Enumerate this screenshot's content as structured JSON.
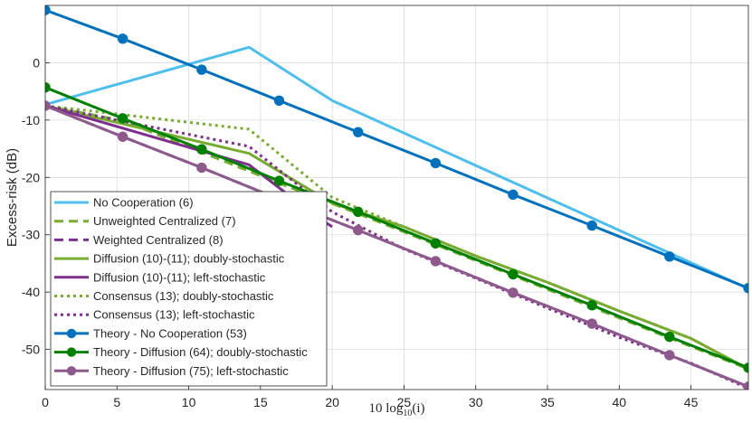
{
  "chart_data": {
    "type": "line",
    "title": "",
    "xlabel": "10 log10(i)",
    "xlabel_parts": {
      "prefix": "10 log",
      "sub": "10",
      "suffix": "(i)"
    },
    "ylabel": "Excess-risk (dB)",
    "xlim": [
      0,
      49
    ],
    "ylim": [
      -57,
      10
    ],
    "xticks": [
      0,
      5,
      10,
      15,
      20,
      25,
      30,
      35,
      40,
      45
    ],
    "yticks": [
      0,
      -10,
      -20,
      -30,
      -40,
      -50
    ],
    "grid": true,
    "legend_position": "bottom-left",
    "series": [
      {
        "name": "No Cooperation (6)",
        "color": "#4DBEEE",
        "dash": "solid",
        "marker": "none",
        "x": [
          0,
          14.2,
          20,
          49
        ],
        "y": [
          -7.3,
          2.7,
          -6.6,
          -39.4
        ]
      },
      {
        "name": "Unweighted Centralized (7)",
        "color": "#77AC30",
        "dash": "dashed",
        "marker": "none",
        "x": [
          0,
          5.4,
          10.9,
          16.3,
          21.8,
          27.2,
          32.6,
          38.1,
          43.5,
          49
        ],
        "y": [
          -7.5,
          -10.1,
          -15.6,
          -21.0,
          -26.3,
          -31.7,
          -37.1,
          -42.6,
          -48.0,
          -53.4
        ]
      },
      {
        "name": "Weighted Centralized (8)",
        "color": "#7E2F8E",
        "dash": "dashed",
        "marker": "none",
        "x": [
          0,
          5.4,
          10.9,
          16.3,
          21.8,
          27.2,
          32.6,
          38.1,
          43.5,
          49
        ],
        "y": [
          -7.5,
          -12.9,
          -18.3,
          -23.8,
          -29.2,
          -34.6,
          -40.1,
          -45.5,
          -51.0,
          -56.5
        ]
      },
      {
        "name": "Diffusion (10)-(11); doubly-stochastic",
        "color": "#77AC30",
        "dash": "solid",
        "marker": "none",
        "x": [
          0,
          14.2,
          20,
          25,
          30,
          35,
          40,
          45,
          49
        ],
        "y": [
          -7.5,
          -15.8,
          -24.5,
          -28.6,
          -33.7,
          -38.3,
          -43.3,
          -48.1,
          -53.4
        ]
      },
      {
        "name": "Diffusion (10)-(11); left-stochastic",
        "color": "#7E2F8E",
        "dash": "solid",
        "marker": "none",
        "x": [
          0,
          14.2,
          19,
          20
        ],
        "y": [
          -7.5,
          -17.8,
          -27.0,
          -28.6
        ]
      },
      {
        "name": "Consensus (13); doubly-stochastic",
        "color": "#77AC30",
        "dash": "dotted",
        "marker": "none",
        "x": [
          0,
          14.2,
          20,
          25,
          30,
          35,
          40,
          45,
          49
        ],
        "y": [
          -7.5,
          -11.6,
          -23.5,
          -28.6,
          -33.7,
          -38.3,
          -43.3,
          -48.1,
          -53.4
        ]
      },
      {
        "name": "Consensus (13); left-stochastic",
        "color": "#7E2F8E",
        "dash": "dotted",
        "marker": "none",
        "x": [
          0,
          14.2,
          20,
          25,
          30,
          35,
          40,
          45,
          49
        ],
        "y": [
          -7.5,
          -14.6,
          -26.0,
          -32.5,
          -37.6,
          -42.8,
          -47.9,
          -52.4,
          -56.8
        ]
      },
      {
        "name": "Theory - No Cooperation (53)",
        "color": "#0072BD",
        "dash": "solid",
        "marker": "circle",
        "x": [
          0,
          5.4,
          10.9,
          16.3,
          21.8,
          27.2,
          32.6,
          38.1,
          43.5,
          49
        ],
        "y": [
          9.2,
          4.2,
          -1.2,
          -6.6,
          -12.1,
          -17.5,
          -23.0,
          -28.4,
          -33.8,
          -39.3
        ]
      },
      {
        "name": "Theory - Diffusion (64); doubly-stochastic",
        "color": "#008000",
        "dash": "solid",
        "marker": "circle",
        "x": [
          0,
          5.4,
          10.9,
          16.3,
          21.8,
          27.2,
          32.6,
          38.1,
          43.5,
          49
        ],
        "y": [
          -4.3,
          -9.7,
          -15.1,
          -20.6,
          -26.0,
          -31.5,
          -36.9,
          -42.3,
          -47.8,
          -53.2
        ]
      },
      {
        "name": "Theory - Diffusion (75); left-stochastic",
        "color": "#8E5A8E",
        "dash": "solid",
        "marker": "circle",
        "x": [
          0,
          5.4,
          10.9,
          16.3,
          21.8,
          27.2,
          32.6,
          38.1,
          43.5,
          49
        ],
        "y": [
          -7.5,
          -12.9,
          -18.3,
          -23.8,
          -29.2,
          -34.6,
          -40.1,
          -45.5,
          -51.0,
          -56.5
        ]
      }
    ]
  }
}
